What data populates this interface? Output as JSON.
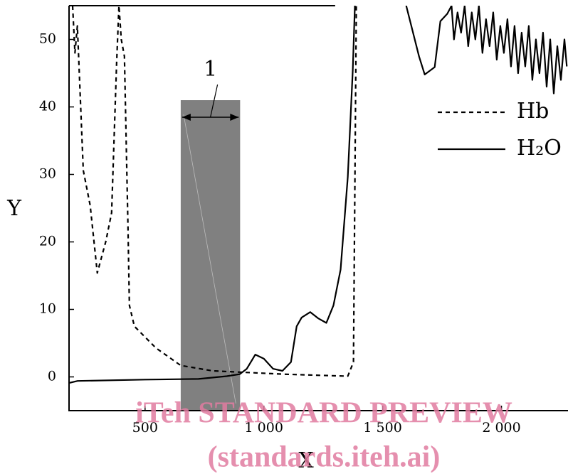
{
  "chart_data": {
    "type": "line",
    "x_label": "X",
    "y_label": "Y",
    "xlim": [
      180,
      2280
    ],
    "ylim": [
      -5,
      55
    ],
    "xticks": [
      500,
      {
        "value": 1000,
        "label": "1 000"
      },
      {
        "value": 1500,
        "label": "1 500"
      },
      {
        "value": 2000,
        "label": "2 000"
      }
    ],
    "yticks": [
      0,
      10,
      20,
      30,
      40,
      50
    ],
    "legend": "upper right",
    "series": [
      {
        "name": "Hb",
        "style": "dashed",
        "color": "#000000",
        "x": [
          195,
          205,
          215,
          240,
          269,
          299,
          335,
          359,
          380,
          390,
          400,
          413,
          428,
          434,
          455,
          500,
          545,
          650,
          784,
          1084,
          1353,
          1377,
          1389
        ],
        "values": [
          55,
          48,
          52,
          30.6,
          25.4,
          15.4,
          20.1,
          24.3,
          46.4,
          55,
          50,
          47.5,
          22.2,
          10.6,
          7.5,
          5.9,
          4.3,
          1.7,
          0.9,
          0.4,
          0.1,
          2.2,
          55
        ]
      },
      {
        "name": "H₂O",
        "style": "solid",
        "color": "#000000",
        "x": [
          180,
          216,
          500,
          725,
          844,
          898,
          928,
          964,
          1000,
          1039,
          1078,
          1114,
          1138,
          1159,
          1195,
          1228,
          1263,
          1293,
          1323,
          1353,
          1374,
          1383,
          1500,
          1599,
          1653,
          1677,
          1719,
          1743,
          1772,
          1790,
          1800,
          1815,
          1830,
          1845,
          1860,
          1875,
          1890,
          1905,
          1920,
          1935,
          1950,
          1965,
          1980,
          1995,
          2010,
          2025,
          2040,
          2055,
          2070,
          2085,
          2100,
          2115,
          2130,
          2145,
          2160,
          2175,
          2190,
          2205,
          2220,
          2235,
          2250,
          2265,
          2275
        ],
        "values": [
          -0.9,
          -0.6,
          -0.4,
          -0.3,
          0.1,
          0.4,
          1.2,
          3.3,
          2.7,
          1.2,
          0.9,
          2.2,
          7.5,
          8.8,
          9.6,
          8.7,
          8,
          10.6,
          15.9,
          29.6,
          45.4,
          55,
          null,
          55,
          47.5,
          44.8,
          45.9,
          52.7,
          53.8,
          55,
          50,
          54,
          51,
          55,
          49,
          54,
          50,
          55,
          48,
          53,
          49,
          54,
          47,
          52,
          48,
          53,
          46,
          52,
          45,
          51,
          46,
          52,
          44,
          50,
          45,
          51,
          43,
          50,
          42,
          49,
          44,
          50,
          46
        ]
      }
    ],
    "annotation": {
      "label": "1",
      "xrange": [
        650,
        900
      ],
      "ytop": 41,
      "color": "#808080"
    },
    "watermark": [
      "iTeh STANDARD PREVIEW",
      "(standards.iteh.ai)"
    ]
  }
}
